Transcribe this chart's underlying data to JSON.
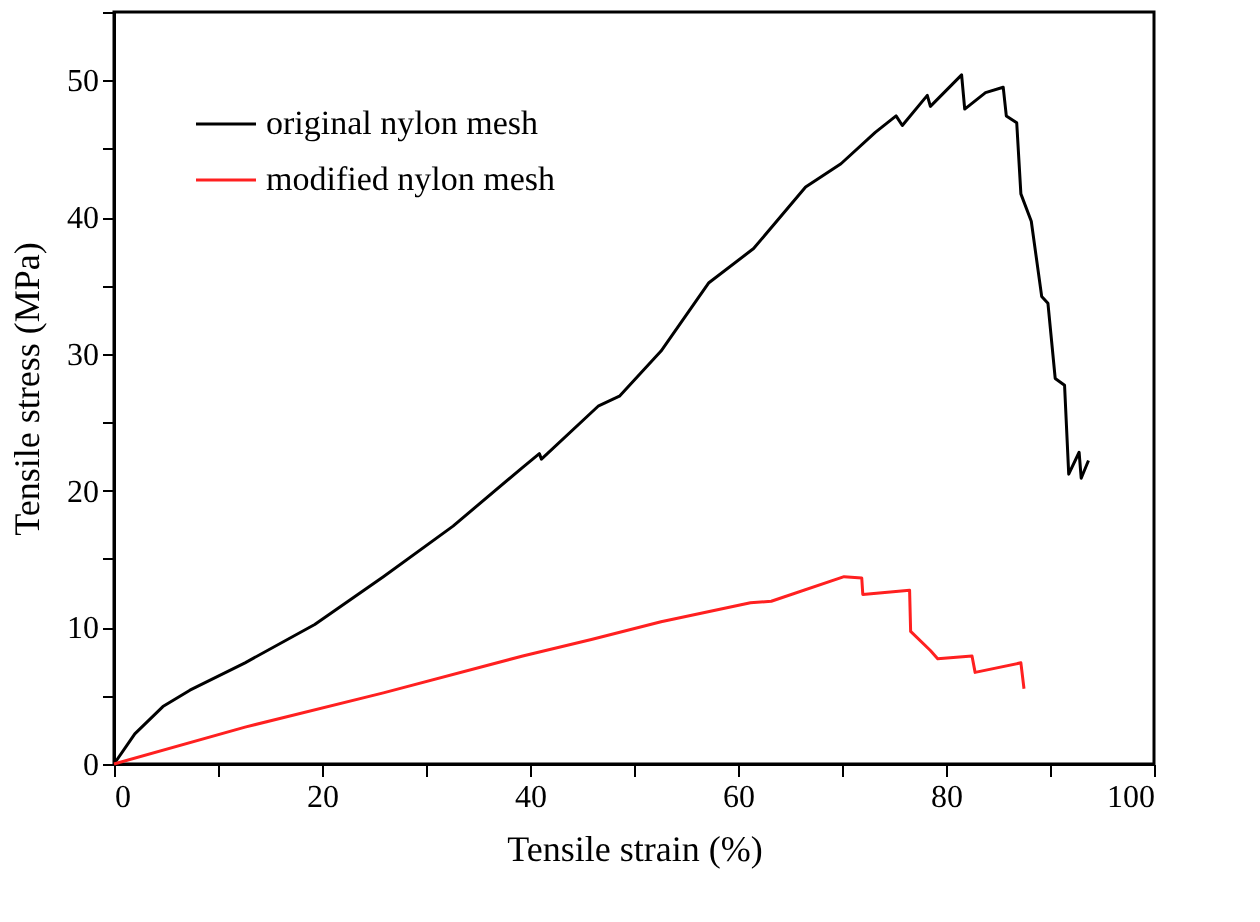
{
  "chart_data": {
    "type": "line",
    "xlabel": "Tensile strain (%)",
    "ylabel": "Tensile stress (MPa)",
    "xlim": [
      0,
      100
    ],
    "ylim": [
      0,
      55
    ],
    "xticks": [
      0,
      {
        "value": 10,
        "label": null
      },
      20,
      {
        "value": 30,
        "label": null
      },
      40,
      {
        "value": 50,
        "label": null
      },
      60,
      {
        "value": 70,
        "label": null
      },
      80,
      {
        "value": 90,
        "label": null
      },
      100
    ],
    "yticks": [
      0,
      {
        "value": 5,
        "label": null
      },
      10,
      {
        "value": 15,
        "label": null
      },
      20,
      {
        "value": 25,
        "label": null
      },
      30,
      {
        "value": 35,
        "label": null
      },
      40,
      {
        "value": 45,
        "label": null
      },
      50,
      {
        "value": 55,
        "label": null
      }
    ],
    "grid": false,
    "legend": "top left",
    "marker": "none",
    "line_style": "solid",
    "series": [
      {
        "name": "original nylon mesh",
        "color": "#000000",
        "x": [
          0,
          2,
          4.7,
          7.3,
          12.6,
          19.3,
          25.9,
          32.6,
          39.3,
          40.9,
          41.1,
          46.6,
          48.6,
          52.6,
          57.2,
          61.5,
          66.5,
          69.9,
          73.2,
          75.2,
          75.8,
          78.2,
          78.5,
          81.5,
          81.8,
          83.8,
          85.5,
          85.8,
          86.8,
          87.2,
          88.2,
          89.2,
          89.8,
          90.5,
          91.4,
          91.8,
          92.8,
          93.0,
          93.7
        ],
        "values": [
          0,
          2.2,
          4.2,
          5.4,
          7.4,
          10.2,
          13.7,
          17.4,
          21.7,
          22.7,
          22.3,
          26.2,
          26.9,
          30.2,
          35.2,
          37.7,
          42.2,
          43.9,
          46.2,
          47.4,
          46.7,
          48.9,
          48.1,
          50.4,
          47.9,
          49.1,
          49.5,
          47.4,
          46.9,
          41.7,
          39.7,
          34.2,
          33.7,
          28.2,
          27.7,
          21.2,
          22.8,
          20.9,
          22.2
        ]
      },
      {
        "name": "modified nylon mesh",
        "color": "#ff2020",
        "x": [
          0,
          12.6,
          25.9,
          39.3,
          45.9,
          52.6,
          61.2,
          63.2,
          70.2,
          71.9,
          72.0,
          76.5,
          76.6,
          78.5,
          79.2,
          82.5,
          82.8,
          87.2,
          87.5
        ],
        "values": [
          0,
          2.7,
          5.2,
          7.9,
          9.1,
          10.4,
          11.8,
          11.9,
          13.7,
          13.6,
          12.4,
          12.7,
          9.7,
          8.3,
          7.7,
          7.9,
          6.7,
          7.4,
          5.5
        ]
      }
    ]
  }
}
